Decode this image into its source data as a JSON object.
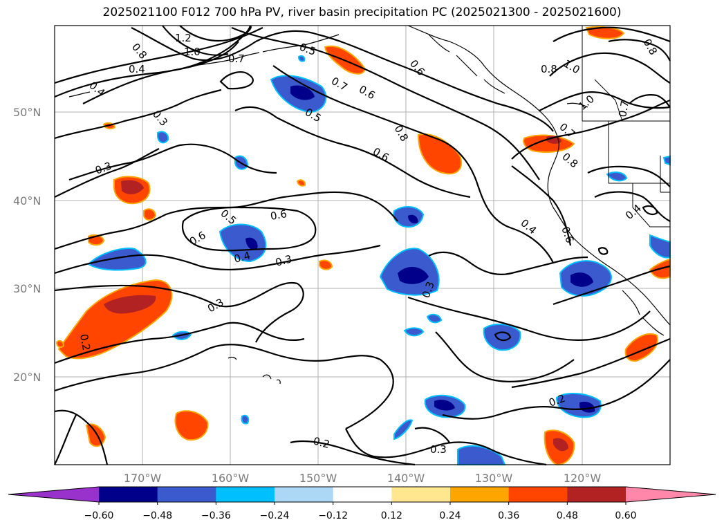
{
  "title": "2025021100 F012 700 hPa PV, river basin precipitation PC (2025021300 - 2025021600)",
  "lat_labels": [
    "50°N",
    "40°N",
    "30°N",
    "20°N"
  ],
  "lon_labels": [
    "170°W",
    "160°W",
    "150°W",
    "140°W",
    "130°W",
    "120°W"
  ],
  "contour_labels": [
    "1.2",
    "1.0",
    "0.8",
    "0.7",
    "0.5",
    "0.4",
    "0.3",
    "0.7",
    "0.6",
    "0.6",
    "0.5",
    "0.8",
    "0.6",
    "1.0",
    "0.8",
    "1.0",
    "0.7",
    "0.8",
    "0.3",
    "0.6",
    "0.5",
    "0.6",
    "0.4",
    "0.3",
    "0.3",
    "0.2",
    "0.4",
    "0.6",
    "0.4",
    "0.3",
    "0.2",
    "0.2",
    "0.3",
    "0.8",
    "0.7",
    "0.4"
  ],
  "colorbar": {
    "ticks": [
      "−0.60",
      "−0.48",
      "−0.36",
      "−0.24",
      "−0.12",
      "0.12",
      "0.24",
      "0.36",
      "0.48",
      "0.60"
    ],
    "colors": [
      "#9932cc",
      "#00008b",
      "#3a5acd",
      "#00bfff",
      "#add8f5",
      "#ffffff",
      "#ffe78f",
      "#ffa500",
      "#ff4500",
      "#b22222",
      "#ff88aa"
    ]
  },
  "colors": {
    "contour": "#000000",
    "grid": "#b0b0b0",
    "frame": "#000000"
  }
}
